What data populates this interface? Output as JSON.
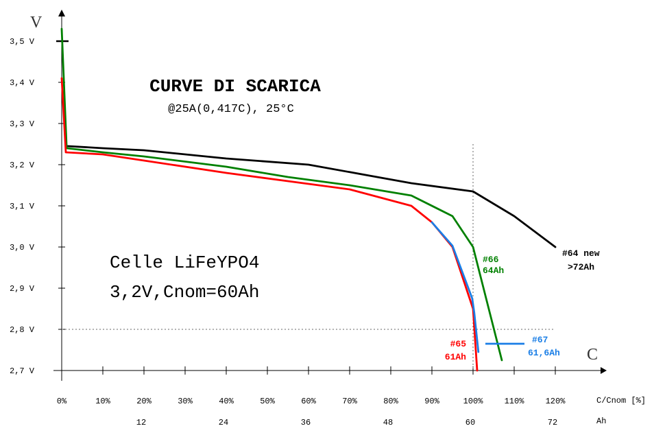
{
  "chart_data": {
    "type": "line",
    "title": "CURVE DI SCARICA",
    "subtitle": "@25A(0,417C), 25°C",
    "note_lines": [
      "Celle LiFeYPO4",
      "3,2V,Cnom=60Ah"
    ],
    "y_axis_label": "V",
    "x_axis_label": "C",
    "x_unit_label": "C/Cnom [%]",
    "x2_unit_label": "Ah",
    "xlim": [
      0,
      130
    ],
    "ylim": [
      2.7,
      3.57
    ],
    "y_ticks": [
      {
        "v": 3.5,
        "label": "3,5 V"
      },
      {
        "v": 3.4,
        "label": "3,4 V"
      },
      {
        "v": 3.3,
        "label": "3,3 V"
      },
      {
        "v": 3.2,
        "label": "3,2 V"
      },
      {
        "v": 3.1,
        "label": "3,1 V"
      },
      {
        "v": 3.0,
        "label": "3,0 V"
      },
      {
        "v": 2.9,
        "label": "2,9 V"
      },
      {
        "v": 2.8,
        "label": "2,8 V"
      },
      {
        "v": 2.7,
        "label": "2,7 V"
      }
    ],
    "x_ticks": [
      {
        "v": 0,
        "label": "0%"
      },
      {
        "v": 10,
        "label": "10%"
      },
      {
        "v": 20,
        "label": "20%"
      },
      {
        "v": 30,
        "label": "30%"
      },
      {
        "v": 40,
        "label": "40%"
      },
      {
        "v": 50,
        "label": "50%"
      },
      {
        "v": 60,
        "label": "60%"
      },
      {
        "v": 70,
        "label": "70%"
      },
      {
        "v": 80,
        "label": "80%"
      },
      {
        "v": 90,
        "label": "90%"
      },
      {
        "v": 100,
        "label": "100%"
      },
      {
        "v": 110,
        "label": "110%"
      },
      {
        "v": 120,
        "label": "120%"
      }
    ],
    "x2_ticks": [
      {
        "v": 20,
        "label": "12"
      },
      {
        "v": 40,
        "label": "24"
      },
      {
        "v": 60,
        "label": "36"
      },
      {
        "v": 80,
        "label": "48"
      },
      {
        "v": 100,
        "label": "60"
      },
      {
        "v": 120,
        "label": "72"
      }
    ],
    "reference_lines": {
      "x": 100,
      "y": 2.8
    },
    "series": [
      {
        "name": "#64 new",
        "label_lines": [
          "#64 new",
          ">72Ah"
        ],
        "color": "#000000",
        "points": [
          [
            1.5,
            3.245
          ],
          [
            10,
            3.24
          ],
          [
            20,
            3.235
          ],
          [
            40,
            3.215
          ],
          [
            60,
            3.2
          ],
          [
            70,
            3.182
          ],
          [
            85,
            3.155
          ],
          [
            100,
            3.135
          ],
          [
            110,
            3.075
          ],
          [
            120,
            3.0
          ]
        ]
      },
      {
        "name": "#66",
        "label_lines": [
          "#66",
          "64Ah"
        ],
        "color": "#008000",
        "points": [
          [
            0,
            3.53
          ],
          [
            1.2,
            3.24
          ],
          [
            10,
            3.23
          ],
          [
            20,
            3.22
          ],
          [
            40,
            3.195
          ],
          [
            55,
            3.17
          ],
          [
            70,
            3.15
          ],
          [
            85,
            3.125
          ],
          [
            95,
            3.075
          ],
          [
            100,
            3.0
          ],
          [
            107,
            2.725
          ]
        ]
      },
      {
        "name": "#65",
        "label_lines": [
          "#65",
          "61Ah"
        ],
        "color": "#ff0000",
        "points": [
          [
            0,
            3.41
          ],
          [
            1,
            3.23
          ],
          [
            10,
            3.225
          ],
          [
            20,
            3.21
          ],
          [
            40,
            3.18
          ],
          [
            55,
            3.16
          ],
          [
            70,
            3.14
          ],
          [
            85,
            3.1
          ],
          [
            90,
            3.06
          ],
          [
            95,
            3.0
          ],
          [
            100,
            2.85
          ],
          [
            101,
            2.7
          ]
        ]
      },
      {
        "name": "#67",
        "label_lines": [
          "#67",
          "61,6Ah"
        ],
        "color": "#1a7ee6",
        "legend_segment": [
          [
            103,
            2.765
          ],
          [
            112.5,
            2.765
          ]
        ],
        "points": [
          [
            90,
            3.06
          ],
          [
            95,
            3.003
          ],
          [
            99.8,
            2.875
          ],
          [
            100.3,
            2.84
          ],
          [
            101.3,
            2.745
          ]
        ]
      }
    ],
    "marker_3_5": 3.5
  }
}
